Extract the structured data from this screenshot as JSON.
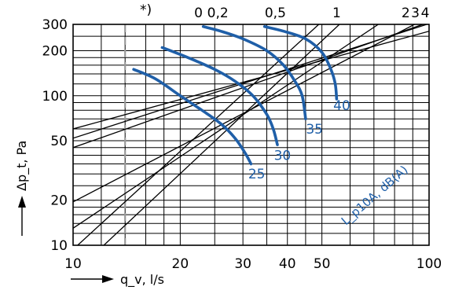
{
  "chart_data": {
    "type": "line",
    "x_scale": "log",
    "y_scale": "log",
    "xlim": [
      10,
      100
    ],
    "ylim": [
      10,
      300
    ],
    "x_ticks": [
      {
        "value": 10,
        "label": "10"
      },
      {
        "value": 20,
        "label": "20"
      },
      {
        "value": 30,
        "label": "30"
      },
      {
        "value": 40,
        "label": "40"
      },
      {
        "value": 50,
        "label": "50"
      },
      {
        "value": 100,
        "label": "100"
      }
    ],
    "y_ticks": [
      {
        "value": 10,
        "label": "10"
      },
      {
        "value": 20,
        "label": "20"
      },
      {
        "value": 50,
        "label": "50"
      },
      {
        "value": 100,
        "label": "100"
      },
      {
        "value": 200,
        "label": "200"
      },
      {
        "value": 300,
        "label": "300"
      }
    ],
    "x_grid": [
      10,
      12,
      14,
      16,
      18,
      20,
      25,
      30,
      35,
      40,
      45,
      50,
      60,
      70,
      80,
      90,
      100
    ],
    "y_grid": [
      10,
      12,
      14,
      16,
      18,
      20,
      25,
      30,
      35,
      40,
      45,
      50,
      60,
      70,
      80,
      90,
      100,
      120,
      140,
      160,
      180,
      200,
      250,
      300
    ],
    "xlabel": "q_v, l/s",
    "ylabel": "Δp_t, Pa",
    "sound_label": "L_p10A, dB(A)",
    "footnote_marker": "*)",
    "dashed_reference_x": 14,
    "damper_lines": [
      {
        "label": "0",
        "points": [
          [
            12.2,
            10
          ],
          [
            56,
            300
          ]
        ]
      },
      {
        "label": "0,2",
        "points": [
          [
            10.3,
            10
          ],
          [
            49,
            300
          ]
        ]
      },
      {
        "label": "0,5",
        "points": [
          [
            10,
            13
          ],
          [
            72,
            300
          ]
        ]
      },
      {
        "label": "1",
        "points": [
          [
            10,
            19.5
          ],
          [
            91,
            300
          ]
        ]
      },
      {
        "label": "2",
        "points": [
          [
            10,
            45
          ],
          [
            96,
            300
          ]
        ]
      },
      {
        "label": "3",
        "points": [
          [
            10,
            52
          ],
          [
            98.5,
            300
          ]
        ]
      },
      {
        "label": "4",
        "points": [
          [
            10,
            60
          ],
          [
            100,
            270
          ]
        ]
      }
    ],
    "top_labels": [
      {
        "text": "0",
        "x": 22.5
      },
      {
        "text": "0,2",
        "x": 25.5
      },
      {
        "text": "0,5",
        "x": 37
      },
      {
        "text": "1",
        "x": 55
      },
      {
        "text": "2",
        "x": 86
      },
      {
        "text": "3",
        "x": 91.5
      },
      {
        "text": "4",
        "x": 97.5
      }
    ],
    "series": [
      {
        "name": "25",
        "color": "#1f5fa8",
        "points": [
          [
            14.8,
            150
          ],
          [
            17,
            130
          ],
          [
            20,
            100
          ],
          [
            23,
            80
          ],
          [
            26,
            65
          ],
          [
            28.5,
            52
          ],
          [
            30.5,
            41
          ],
          [
            31.6,
            35
          ]
        ]
      },
      {
        "name": "30",
        "color": "#1f5fa8",
        "points": [
          [
            17.8,
            210
          ],
          [
            21,
            180
          ],
          [
            25,
            150
          ],
          [
            28.5,
            125
          ],
          [
            32,
            100
          ],
          [
            35,
            75
          ],
          [
            36.5,
            60
          ],
          [
            37.5,
            47
          ]
        ]
      },
      {
        "name": "35",
        "color": "#1f5fa8",
        "points": [
          [
            23.2,
            290
          ],
          [
            26,
            270
          ],
          [
            30,
            240
          ],
          [
            35,
            200
          ],
          [
            39,
            160
          ],
          [
            42,
            125
          ],
          [
            44,
            100
          ],
          [
            45,
            70
          ]
        ]
      },
      {
        "name": "40",
        "color": "#1f5fa8",
        "points": [
          [
            34.5,
            290
          ],
          [
            39,
            270
          ],
          [
            45,
            240
          ],
          [
            50,
            195
          ],
          [
            53,
            150
          ],
          [
            54.5,
            120
          ],
          [
            55,
            95
          ]
        ]
      }
    ],
    "series_labels": [
      {
        "text": "25",
        "x": 32,
        "y": 30
      },
      {
        "text": "30",
        "x": 37.8,
        "y": 40
      },
      {
        "text": "35",
        "x": 46.5,
        "y": 60
      },
      {
        "text": "40",
        "x": 55.5,
        "y": 86
      }
    ]
  }
}
